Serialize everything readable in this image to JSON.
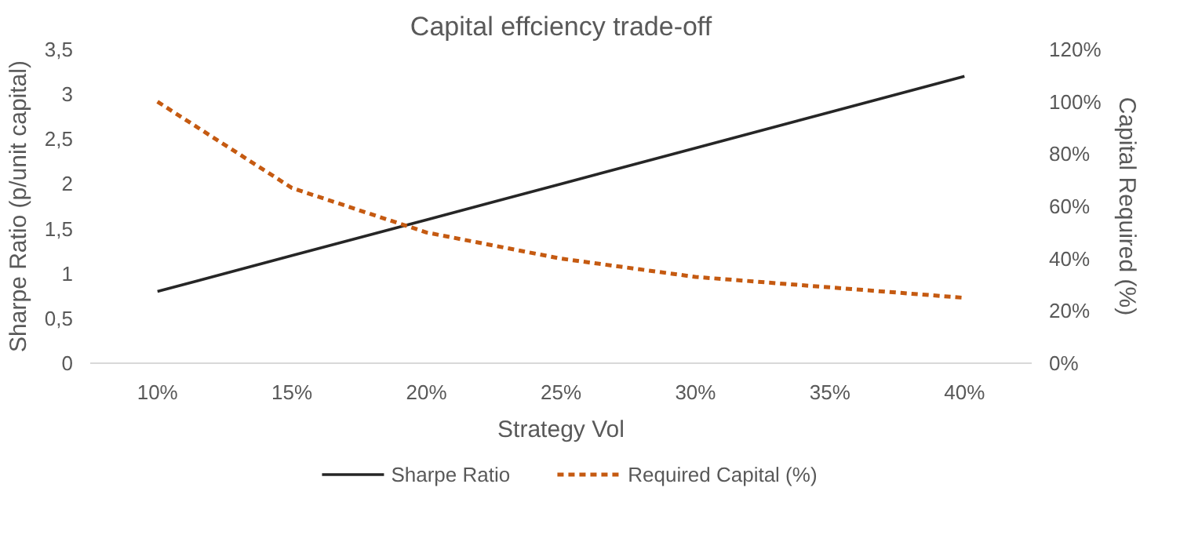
{
  "chart_data": {
    "type": "line",
    "title": "Capital effciency trade-off",
    "xlabel": "Strategy Vol",
    "ylabel": "Sharpe Ratio (p/unit capital)",
    "y2label": "Capital Required (%)",
    "categories": [
      "10%",
      "15%",
      "20%",
      "25%",
      "30%",
      "35%",
      "40%"
    ],
    "series": [
      {
        "name": "Sharpe Ratio",
        "color": "#262626",
        "values": [
          0.8,
          1.2,
          1.6,
          2.0,
          2.4,
          2.8,
          3.2
        ],
        "line_style": "solid"
      },
      {
        "name": "Required Capital (%)",
        "color": "#c55a11",
        "values": [
          100,
          67,
          50,
          40,
          33,
          29,
          25
        ],
        "axis": "y2",
        "line_style": "dashed"
      }
    ],
    "ylim": [
      0,
      3.5
    ],
    "yticks": [
      0,
      {
        "value": 0.5,
        "label": "0,5"
      },
      1,
      {
        "value": 1.5,
        "label": "1,5"
      },
      2,
      {
        "value": 2.5,
        "label": "2,5"
      },
      3,
      {
        "value": 3.5,
        "label": "3,5"
      }
    ],
    "y2lim": [
      0,
      120
    ],
    "y2ticks": [
      {
        "value": 0,
        "label": "0%"
      },
      {
        "value": 20,
        "label": "20%"
      },
      {
        "value": 40,
        "label": "40%"
      },
      {
        "value": 60,
        "label": "60%"
      },
      {
        "value": 80,
        "label": "80%"
      },
      {
        "value": 100,
        "label": "100%"
      },
      {
        "value": 120,
        "label": "120%"
      }
    ],
    "grid": false,
    "legend": "bottom",
    "marker": "none"
  }
}
